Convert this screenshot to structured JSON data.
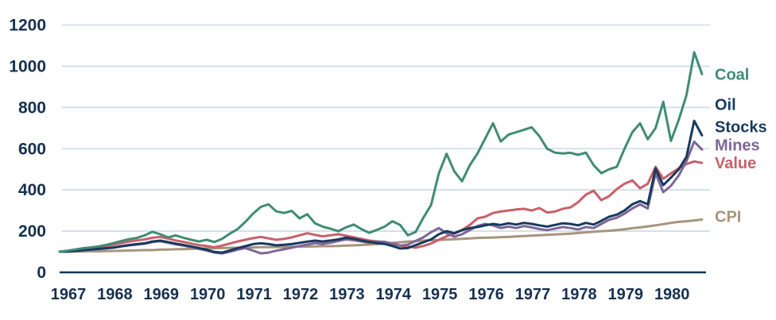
{
  "chart_data": {
    "type": "line",
    "title": "",
    "x_start_year": 1967,
    "points_per_year": 6,
    "x_tick_labels": [
      "1967",
      "1968",
      "1969",
      "1970",
      "1971",
      "1972",
      "1973",
      "1974",
      "1975",
      "1976",
      "1977",
      "1978",
      "1979",
      "1980"
    ],
    "y_tick_labels": [
      "0",
      "200",
      "400",
      "600",
      "800",
      "1000",
      "1200"
    ],
    "y_ticks": [
      0,
      200,
      400,
      600,
      800,
      1000,
      1200
    ],
    "ylim": [
      0,
      1200
    ],
    "grid": "horizontal-only",
    "gridline_color": "#cfdfe6",
    "axis_color": "#14355a",
    "tick_label_color": "#16304e",
    "legend_position": "right-of-line-ends",
    "series": [
      {
        "name": "CPI",
        "label_lines": [
          "CPI"
        ],
        "color": "#a6947c",
        "values": [
          100,
          100,
          101,
          101,
          102,
          102,
          103,
          104,
          105,
          106,
          107,
          108,
          108,
          110,
          111,
          112,
          113,
          114,
          115,
          116,
          117,
          118,
          119,
          120,
          120,
          121,
          122,
          122,
          123,
          123,
          124,
          125,
          125,
          126,
          127,
          127,
          128,
          130,
          131,
          133,
          135,
          137,
          140,
          143,
          146,
          149,
          151,
          154,
          156,
          157,
          159,
          161,
          163,
          165,
          167,
          168,
          169,
          171,
          172,
          174,
          176,
          178,
          180,
          182,
          184,
          186,
          188,
          191,
          194,
          197,
          200,
          202,
          205,
          209,
          214,
          218,
          223,
          228,
          234,
          240,
          245,
          248,
          252,
          256
        ]
      },
      {
        "name": "Value",
        "label_lines": [
          "Value"
        ],
        "color": "#c95f6a",
        "values": [
          100,
          103,
          108,
          114,
          118,
          124,
          128,
          134,
          142,
          150,
          155,
          160,
          168,
          172,
          164,
          155,
          148,
          140,
          132,
          128,
          122,
          130,
          140,
          150,
          158,
          166,
          172,
          165,
          158,
          162,
          170,
          180,
          190,
          182,
          175,
          180,
          185,
          178,
          170,
          162,
          155,
          150,
          145,
          138,
          130,
          125,
          120,
          128,
          140,
          158,
          175,
          188,
          205,
          230,
          262,
          270,
          288,
          295,
          300,
          305,
          308,
          300,
          312,
          290,
          295,
          308,
          315,
          340,
          377,
          396,
          350,
          370,
          404,
          430,
          446,
          408,
          430,
          512,
          454,
          480,
          505,
          525,
          538,
          531
        ]
      },
      {
        "name": "Mines",
        "label_lines": [
          "Mines"
        ],
        "color": "#7e6697",
        "values": [
          100,
          100,
          103,
          107,
          110,
          113,
          116,
          120,
          126,
          131,
          135,
          139,
          147,
          151,
          144,
          136,
          130,
          123,
          114,
          106,
          96,
          92,
          100,
          110,
          118,
          105,
          92,
          96,
          105,
          112,
          120,
          128,
          135,
          142,
          138,
          144,
          152,
          160,
          156,
          150,
          144,
          150,
          148,
          140,
          130,
          135,
          152,
          170,
          195,
          215,
          190,
          173,
          185,
          205,
          225,
          235,
          228,
          215,
          222,
          215,
          225,
          218,
          210,
          205,
          212,
          220,
          215,
          208,
          220,
          215,
          235,
          255,
          265,
          285,
          310,
          330,
          310,
          481,
          389,
          420,
          470,
          540,
          634,
          596
        ]
      },
      {
        "name": "Oil Stocks",
        "label_lines": [
          "Oil",
          "Stocks"
        ],
        "color": "#173a5e",
        "values": [
          100,
          101,
          104,
          108,
          111,
          114,
          117,
          121,
          127,
          133,
          137,
          141,
          150,
          154,
          147,
          139,
          133,
          126,
          118,
          110,
          99,
          96,
          106,
          117,
          127,
          137,
          141,
          137,
          131,
          134,
          137,
          143,
          149,
          154,
          150,
          155,
          160,
          168,
          163,
          155,
          148,
          142,
          138,
          128,
          116,
          118,
          132,
          146,
          160,
          185,
          200,
          190,
          205,
          215,
          220,
          228,
          235,
          230,
          238,
          232,
          240,
          235,
          228,
          222,
          230,
          238,
          235,
          228,
          240,
          232,
          250,
          270,
          280,
          300,
          330,
          346,
          330,
          504,
          423,
          460,
          500,
          560,
          735,
          665
        ]
      },
      {
        "name": "Coal",
        "label_lines": [
          "Coal"
        ],
        "color": "#3f8c73",
        "values": [
          100,
          105,
          111,
          117,
          121,
          126,
          133,
          142,
          152,
          161,
          167,
          180,
          197,
          185,
          170,
          179,
          168,
          158,
          150,
          158,
          147,
          163,
          188,
          210,
          245,
          285,
          318,
          330,
          296,
          288,
          298,
          262,
          282,
          238,
          222,
          212,
          200,
          218,
          232,
          210,
          192,
          206,
          222,
          248,
          230,
          180,
          196,
          265,
          327,
          480,
          575,
          490,
          442,
          520,
          577,
          650,
          723,
          635,
          668,
          680,
          692,
          704,
          660,
          600,
          581,
          577,
          580,
          570,
          581,
          520,
          481,
          500,
          512,
          600,
          680,
          723,
          646,
          700,
          827,
          638,
          740,
          860,
          1068,
          962
        ]
      }
    ]
  }
}
